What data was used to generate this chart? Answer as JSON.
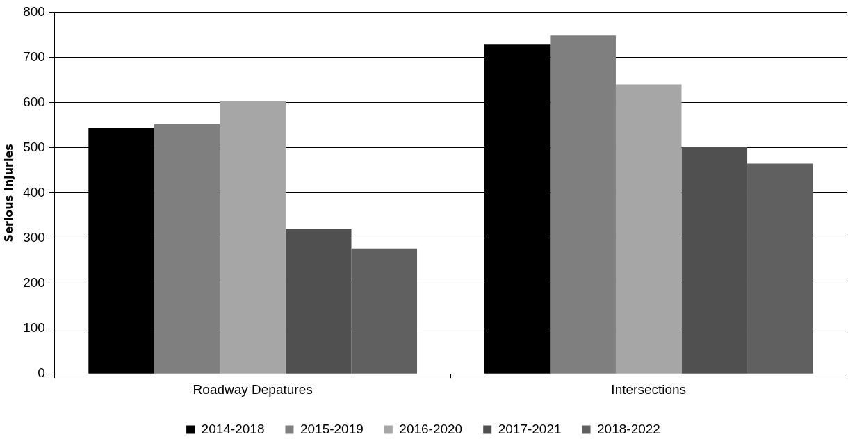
{
  "chart_data": {
    "type": "bar",
    "ylabel": "Serious Injuries",
    "categories": [
      "Roadway Depatures",
      "Intersections"
    ],
    "series": [
      {
        "name": "2014-2018",
        "color": "#000000",
        "values": [
          544,
          728
        ]
      },
      {
        "name": "2015-2019",
        "color": "#7f7f7f",
        "values": [
          552,
          748
        ]
      },
      {
        "name": "2016-2020",
        "color": "#a6a6a6",
        "values": [
          603,
          640
        ]
      },
      {
        "name": "2017-2021",
        "color": "#505050",
        "values": [
          321,
          501
        ]
      },
      {
        "name": "2018-2022",
        "color": "#606060",
        "values": [
          277,
          465
        ]
      }
    ],
    "ylim": [
      0,
      800
    ],
    "yticks": [
      0,
      100,
      200,
      300,
      400,
      500,
      600,
      700,
      800
    ],
    "grid": "y",
    "legend": "bottom"
  }
}
